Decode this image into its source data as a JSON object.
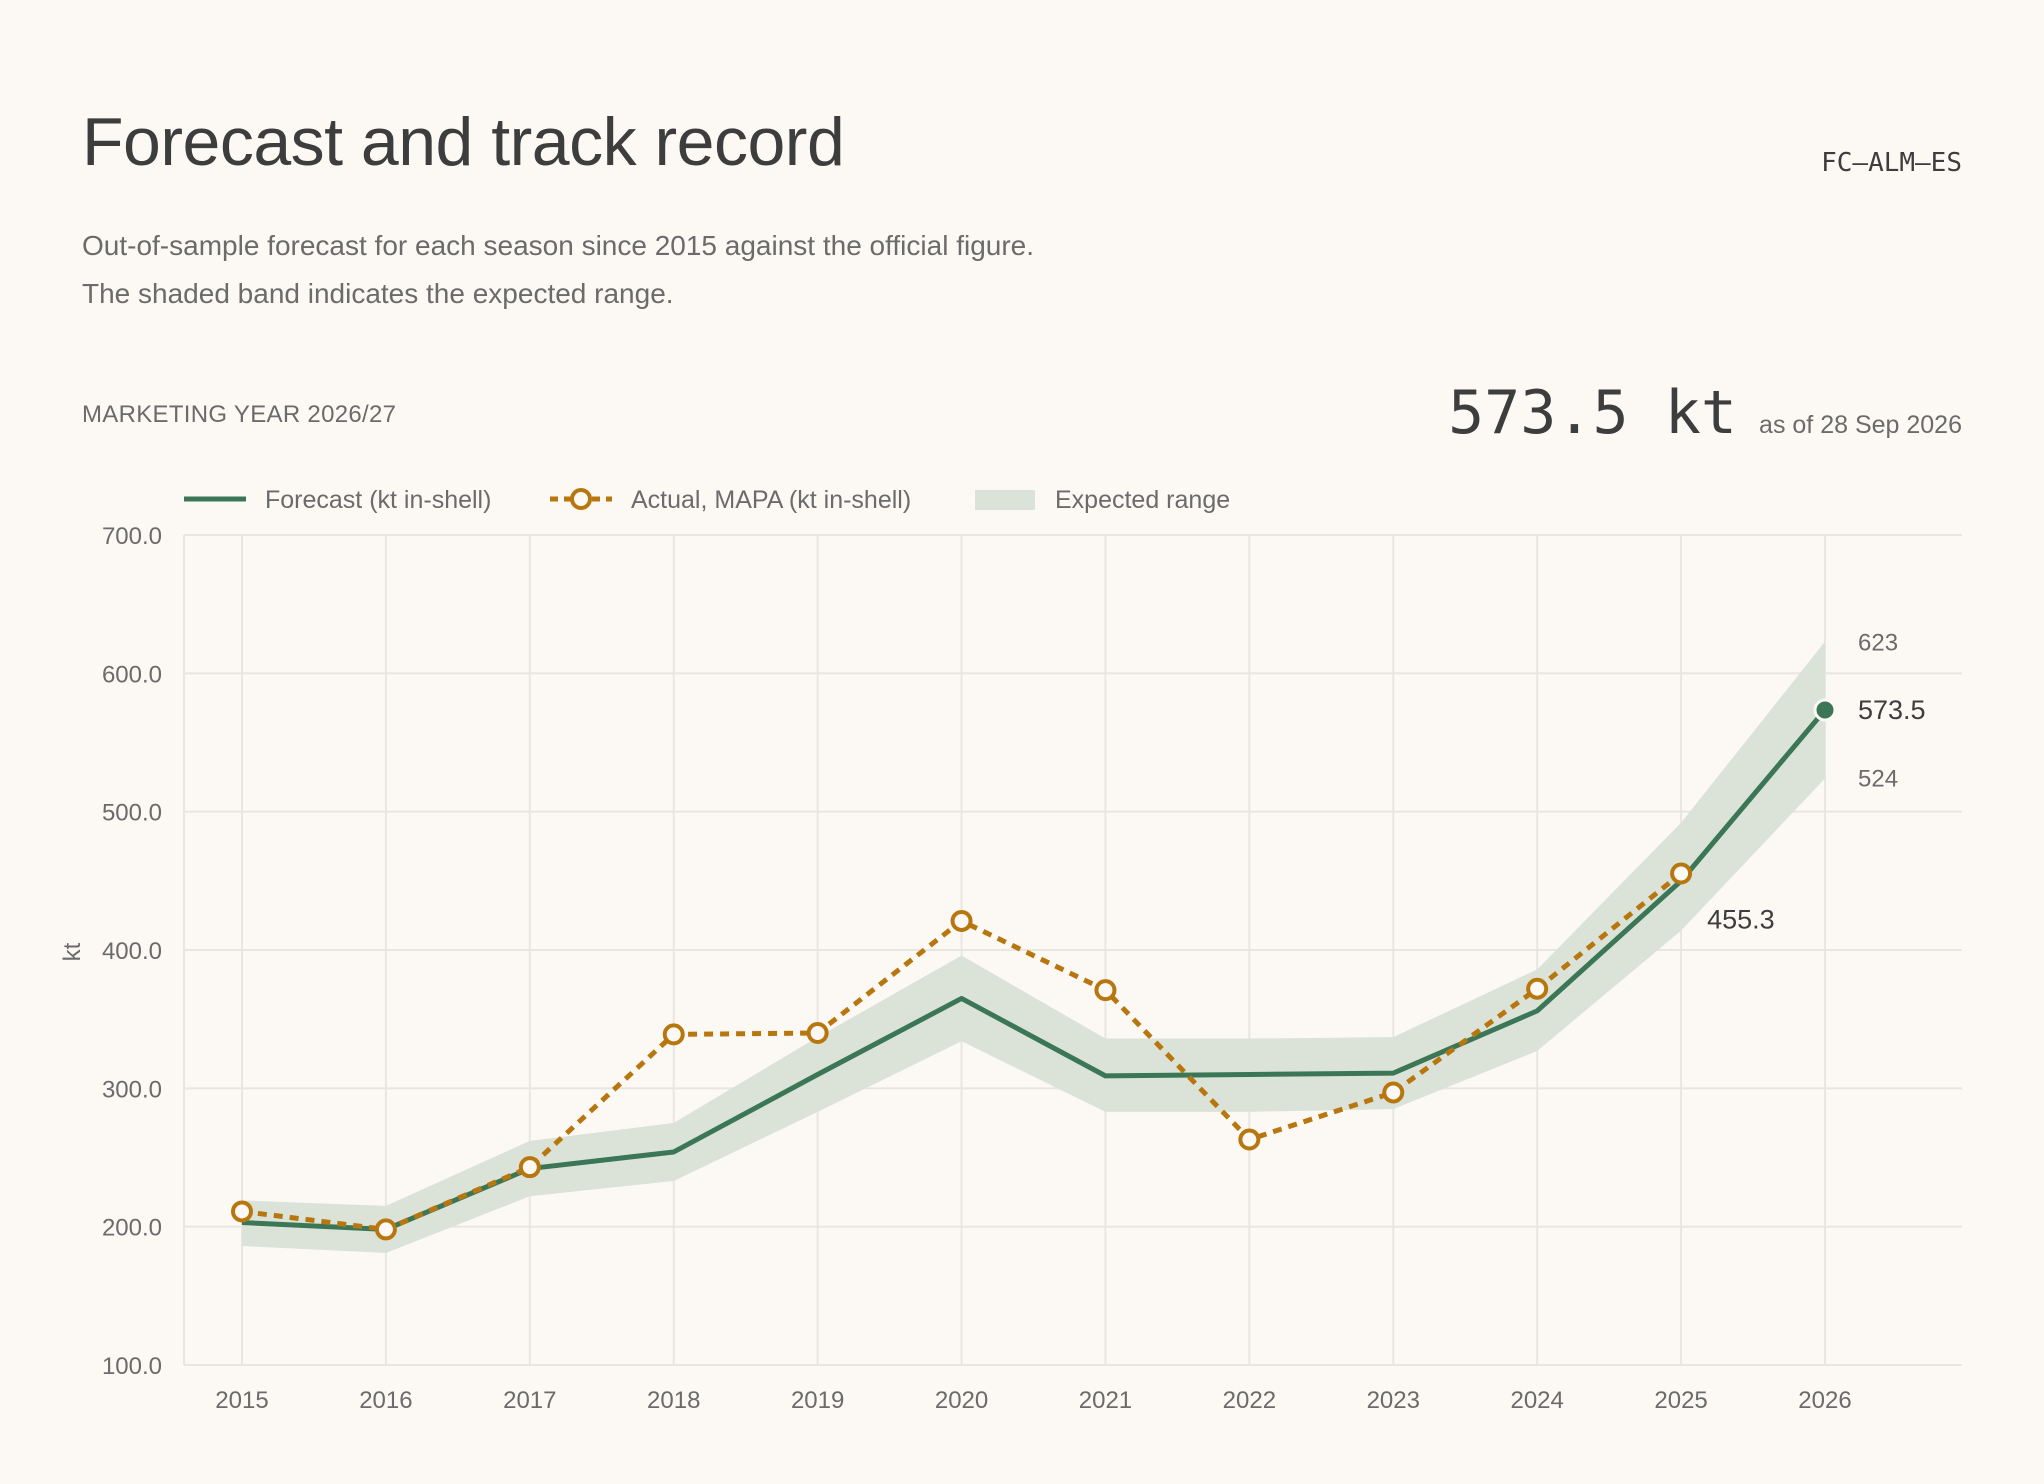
{
  "header": {
    "title": "Forecast and track record",
    "code": "FC–ALM–ES",
    "subtitle_lines": [
      "Out-of-sample forecast for each season since 2015 against the official figure.",
      "The shaded band indicates the expected range."
    ],
    "kicker": "MARKETING YEAR 2026/27",
    "headline_value": "573.5 kt",
    "headline_asof": "as of 28 Sep 2026"
  },
  "colors": {
    "forecast": "#3b7757",
    "actual": "#b8760f",
    "band": "#dbe3d8",
    "grid": "#e9e6e1",
    "text": "#6b6b6b",
    "dark_text": "#3d3d3d",
    "background": "#fcf9f4"
  },
  "chart_data": {
    "type": "line",
    "x": [
      2015,
      2016,
      2017,
      2018,
      2019,
      2020,
      2021,
      2022,
      2023,
      2024,
      2025,
      2026
    ],
    "ylabel": "kt",
    "ylim": [
      100,
      700
    ],
    "yticks": [
      100,
      200,
      300,
      400,
      500,
      600,
      700
    ],
    "ytick_labels": [
      "100.0",
      "200.0",
      "300.0",
      "400.0",
      "500.0",
      "600.0",
      "700.0"
    ],
    "grid": true,
    "legend_position": "top-left",
    "legend": {
      "forecast": "Forecast (kt in-shell)",
      "actual": "Actual, MAPA (kt in-shell)",
      "band": "Expected range"
    },
    "series": [
      {
        "name": "Forecast (kt in-shell)",
        "values": [
          203,
          198,
          242,
          254,
          310,
          365,
          309,
          310,
          311,
          356,
          450,
          573.5
        ]
      },
      {
        "name": "Actual, MAPA (kt in-shell)",
        "values": [
          211,
          198,
          243,
          339,
          340,
          421,
          371,
          263,
          297,
          372,
          455.3,
          null
        ]
      }
    ],
    "band": {
      "name": "Expected range",
      "lower": [
        186,
        181,
        222,
        233,
        283,
        334,
        283,
        283,
        285,
        327,
        414,
        524
      ],
      "upper": [
        219,
        215,
        262,
        275,
        337,
        396,
        336,
        336,
        337,
        386,
        492,
        623
      ]
    },
    "annotations": {
      "actual_last_label": "455.3",
      "forecast_last_label": "573.5",
      "band_upper_label": "623",
      "band_lower_label": "524"
    }
  }
}
